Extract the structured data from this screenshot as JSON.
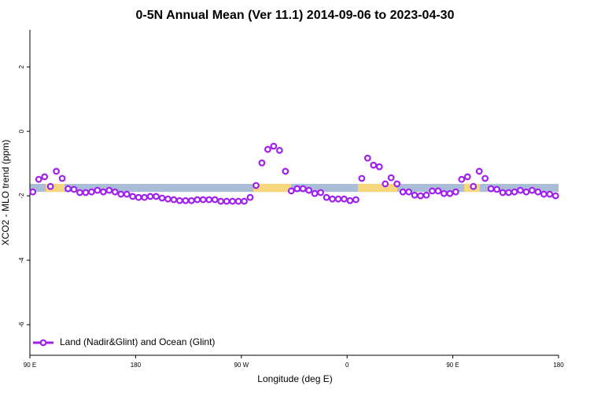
{
  "chart_data": {
    "type": "line",
    "title": "0-5N Annual Mean (Ver 11.1)   2014-09-06 to 2023-04-30",
    "x_label": "Longitude (deg E)",
    "y_label": "XCO2 - MLO trend (ppm)",
    "xlim": [
      90,
      540
    ],
    "ylim": [
      -6.95,
      3.15
    ],
    "xticks": [
      {
        "value": 90,
        "label": "90 E"
      },
      {
        "value": 180,
        "label": "180"
      },
      {
        "value": 270,
        "label": "90 W"
      },
      {
        "value": 360,
        "label": "0"
      },
      {
        "value": 450,
        "label": "90 E"
      },
      {
        "value": 540,
        "label": "180"
      }
    ],
    "yticks": [
      2,
      0,
      -2,
      -4,
      -6
    ],
    "legend_position": "bottom-left",
    "surface_band": {
      "y": [
        -1.88,
        -1.63
      ],
      "ocean_color": "#a9bdd6",
      "land_color": "#f7d77c",
      "land_spans": [
        [
          103.4,
          119.5
        ],
        [
          280.2,
          312.3
        ],
        [
          369.2,
          402.7
        ],
        [
          459.6,
          473.0
        ]
      ]
    },
    "x": [
      92.5,
      97.5,
      102.5,
      107.5,
      112.5,
      117.5,
      122.5,
      127.5,
      132.5,
      137.5,
      142.5,
      147.5,
      152.5,
      157.5,
      162.5,
      167.5,
      172.5,
      177.5,
      182.5,
      187.5,
      192.5,
      197.5,
      202.5,
      207.5,
      212.5,
      217.5,
      222.5,
      227.5,
      232.5,
      237.5,
      242.5,
      247.5,
      252.5,
      257.5,
      262.5,
      267.5,
      272.5,
      277.5,
      282.5,
      287.5,
      292.5,
      297.5,
      302.5,
      307.5,
      312.5,
      317.5,
      322.5,
      327.5,
      332.5,
      337.5,
      342.5,
      347.5,
      352.5,
      357.5,
      362.5,
      367.5,
      372.5,
      377.5,
      382.5,
      387.5,
      392.5,
      397.5,
      402.5,
      407.5,
      412.5,
      417.5,
      422.5,
      427.5,
      432.5,
      437.5,
      442.5,
      447.5,
      452.5,
      457.5,
      462.5,
      467.5,
      472.5,
      477.5,
      482.5,
      487.5,
      492.5,
      497.5,
      502.5,
      507.5,
      512.5,
      517.5,
      522.5,
      527.5,
      532.5,
      537.5
    ],
    "series": [
      {
        "name": "Land (Nadir&Glint) and Ocean (Glint)",
        "color": "#a020f0",
        "values": [
          -1.88,
          -1.49,
          -1.41,
          -1.71,
          -1.24,
          -1.46,
          -1.78,
          -1.8,
          -1.9,
          -1.9,
          -1.88,
          -1.83,
          -1.88,
          -1.83,
          -1.88,
          -1.95,
          -1.95,
          -2.02,
          -2.05,
          -2.05,
          -2.02,
          -2.02,
          -2.07,
          -2.1,
          -2.12,
          -2.15,
          -2.15,
          -2.15,
          -2.12,
          -2.12,
          -2.12,
          -2.12,
          -2.17,
          -2.17,
          -2.17,
          -2.17,
          -2.17,
          -2.05,
          -1.68,
          -0.98,
          -0.56,
          -0.46,
          -0.59,
          -1.24,
          -1.85,
          -1.78,
          -1.78,
          -1.83,
          -1.93,
          -1.9,
          -2.05,
          -2.1,
          -2.1,
          -2.1,
          -2.15,
          -2.12,
          -1.46,
          -0.83,
          -1.05,
          -1.1,
          -1.63,
          -1.44,
          -1.63,
          -1.88,
          -1.88,
          -1.98,
          -2.0,
          -1.98,
          -1.85,
          -1.85,
          -1.93,
          -1.93,
          -1.88,
          -1.49,
          -1.41,
          -1.71,
          -1.24,
          -1.46,
          -1.78,
          -1.8,
          -1.9,
          -1.9,
          -1.88,
          -1.83,
          -1.88,
          -1.83,
          -1.88,
          -1.95,
          -1.95,
          -2.0
        ]
      }
    ]
  }
}
